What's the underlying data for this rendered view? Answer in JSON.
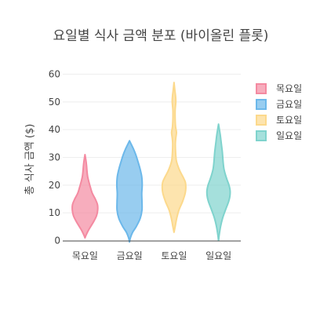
{
  "chart_data": {
    "type": "violin",
    "title": "요일별 식사 금액 분포 (바이올린 플롯)",
    "xlabel": "",
    "ylabel": "총 식사 금액 ($)",
    "ylim": [
      -1,
      61
    ],
    "yticks": [
      0,
      10,
      20,
      30,
      40,
      50,
      60
    ],
    "categories": [
      "목요일",
      "금요일",
      "토요일",
      "일요일"
    ],
    "grid": true,
    "legend_position": "right",
    "series": [
      {
        "name": "목요일",
        "color": "#f48aa1",
        "range": [
          1,
          31
        ],
        "profile": [
          [
            1,
            0.0
          ],
          [
            2,
            0.05
          ],
          [
            3.5,
            0.14
          ],
          [
            5,
            0.25
          ],
          [
            7,
            0.4
          ],
          [
            9,
            0.52
          ],
          [
            11,
            0.57
          ],
          [
            13,
            0.56
          ],
          [
            15,
            0.46
          ],
          [
            17,
            0.33
          ],
          [
            19,
            0.25
          ],
          [
            21,
            0.18
          ],
          [
            23,
            0.12
          ],
          [
            25,
            0.09
          ],
          [
            27,
            0.07
          ],
          [
            29,
            0.04
          ],
          [
            31,
            0.0
          ]
        ]
      },
      {
        "name": "금요일",
        "color": "#6cb8ea",
        "range": [
          -0.5,
          36
        ],
        "profile": [
          [
            -0.5,
            0.0
          ],
          [
            1,
            0.04
          ],
          [
            3,
            0.14
          ],
          [
            5,
            0.3
          ],
          [
            8,
            0.48
          ],
          [
            11,
            0.56
          ],
          [
            14,
            0.56
          ],
          [
            17,
            0.55
          ],
          [
            20,
            0.57
          ],
          [
            23,
            0.55
          ],
          [
            26,
            0.47
          ],
          [
            29,
            0.36
          ],
          [
            31,
            0.28
          ],
          [
            33,
            0.18
          ],
          [
            34.5,
            0.09
          ],
          [
            36,
            0.0
          ]
        ]
      },
      {
        "name": "토요일",
        "color": "#fcd98c",
        "range": [
          3,
          57
        ],
        "profile": [
          [
            3,
            0.0
          ],
          [
            5,
            0.05
          ],
          [
            8,
            0.12
          ],
          [
            11,
            0.22
          ],
          [
            14,
            0.38
          ],
          [
            17,
            0.5
          ],
          [
            19,
            0.53
          ],
          [
            21,
            0.51
          ],
          [
            23,
            0.4
          ],
          [
            25,
            0.27
          ],
          [
            27,
            0.17
          ],
          [
            29,
            0.1
          ],
          [
            32,
            0.07
          ],
          [
            35,
            0.06
          ],
          [
            37,
            0.08
          ],
          [
            39,
            0.11
          ],
          [
            41,
            0.07
          ],
          [
            44,
            0.05
          ],
          [
            47,
            0.05
          ],
          [
            50,
            0.08
          ],
          [
            52,
            0.07
          ],
          [
            54,
            0.04
          ],
          [
            57,
            0.0
          ]
        ]
      },
      {
        "name": "일요일",
        "color": "#7fd3cd",
        "range": [
          0,
          42
        ],
        "profile": [
          [
            0,
            0.0
          ],
          [
            2,
            0.03
          ],
          [
            5,
            0.09
          ],
          [
            8,
            0.18
          ],
          [
            11,
            0.31
          ],
          [
            14,
            0.45
          ],
          [
            16,
            0.51
          ],
          [
            18,
            0.52
          ],
          [
            20,
            0.47
          ],
          [
            22,
            0.38
          ],
          [
            24,
            0.3
          ],
          [
            26,
            0.24
          ],
          [
            28,
            0.21
          ],
          [
            30,
            0.19
          ],
          [
            32,
            0.17
          ],
          [
            34,
            0.14
          ],
          [
            36,
            0.11
          ],
          [
            38,
            0.08
          ],
          [
            40,
            0.04
          ],
          [
            42,
            0.0
          ]
        ]
      }
    ]
  }
}
